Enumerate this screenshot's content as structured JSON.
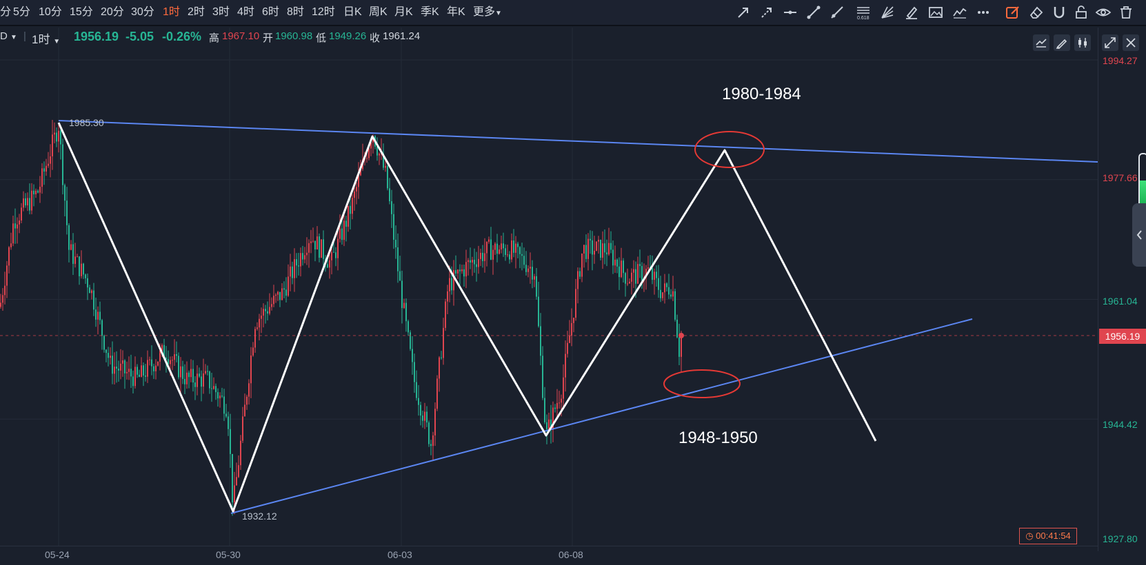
{
  "toolbar": {
    "periods": [
      {
        "label": "分",
        "active": false
      },
      {
        "label": "5分",
        "active": false
      },
      {
        "label": "10分",
        "active": false
      },
      {
        "label": "15分",
        "active": false
      },
      {
        "label": "20分",
        "active": false
      },
      {
        "label": "30分",
        "active": false
      },
      {
        "label": "1时",
        "active": true
      },
      {
        "label": "2时",
        "active": false
      },
      {
        "label": "3时",
        "active": false
      },
      {
        "label": "4时",
        "active": false
      },
      {
        "label": "6时",
        "active": false
      },
      {
        "label": "8时",
        "active": false
      },
      {
        "label": "12时",
        "active": false
      },
      {
        "label": "日K",
        "active": false
      },
      {
        "label": "周K",
        "active": false
      },
      {
        "label": "月K",
        "active": false
      },
      {
        "label": "季K",
        "active": false
      },
      {
        "label": "年K",
        "active": false
      }
    ],
    "more_label": "更多",
    "tools": [
      "arrow-line-icon",
      "dashed-arrow-icon",
      "horizontal-line-icon",
      "segment-line-icon",
      "ray-line-icon",
      "fibonacci-icon",
      "gann-fan-icon",
      "highlighter-icon",
      "image-icon",
      "trend-icon",
      "more-dots-icon",
      "edit-active-icon",
      "eraser-icon",
      "magnet-icon",
      "unlock-icon",
      "eye-icon",
      "trash-icon"
    ]
  },
  "infobar": {
    "symbol_suffix": "D",
    "interval": "1时",
    "price": "1956.19",
    "change": "-5.05",
    "change_pct": "-0.26%",
    "high_label": "高",
    "high": "1967.10",
    "open_label": "开",
    "open": "1960.98",
    "low_label": "低",
    "low": "1949.26",
    "close_label": "收",
    "close": "1961.24"
  },
  "price_axis": {
    "labels": [
      {
        "value": "1994.27",
        "color": "#e0454f"
      },
      {
        "value": "1977.66",
        "color": "#e0454f"
      },
      {
        "value": "1961.04",
        "color": "#27b594"
      },
      {
        "value": "1944.42",
        "color": "#27b594"
      },
      {
        "value": "1927.80",
        "color": "#27b594"
      }
    ],
    "current_price": "1956.19"
  },
  "time_axis": {
    "labels": [
      "05-24",
      "05-30",
      "06-03",
      "06-08"
    ]
  },
  "annotations": {
    "resistance": "1980-1984",
    "support": "1948-1950",
    "swing_high": "1985.30",
    "swing_low": "1932.12"
  },
  "countdown": "00:41:54",
  "colors": {
    "bg": "#1a202c",
    "up": "#e0454f",
    "down": "#27b594",
    "trendline": "#5b86f2",
    "zigzag": "#ffffff",
    "ellipse": "#e53935",
    "accent": "#ff6a3d"
  },
  "side_panel": {
    "volume_fill": 0.5
  }
}
